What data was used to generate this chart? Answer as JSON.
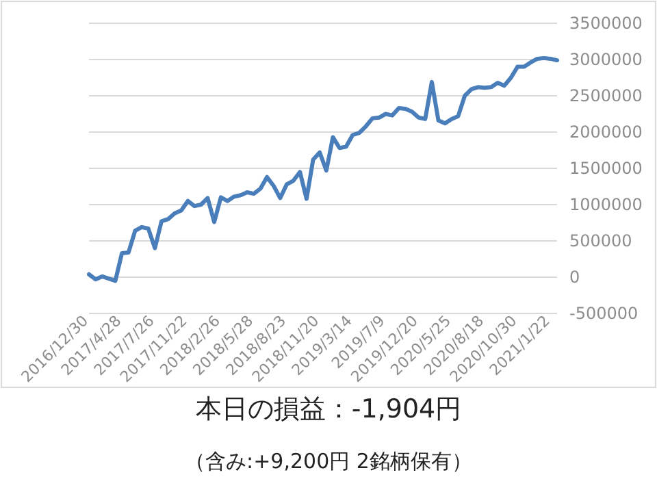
{
  "chart_data": {
    "type": "line",
    "title": "本日の損益：-1,904円",
    "subtitle": "（含み:+9,200円  2銘柄保有）",
    "categories": [
      "2016/12/30",
      null,
      null,
      null,
      null,
      "2017/4/28",
      null,
      null,
      null,
      null,
      "2017/7/26",
      null,
      null,
      null,
      null,
      "2017/11/22",
      null,
      null,
      null,
      null,
      "2018/2/26",
      null,
      null,
      null,
      null,
      "2018/5/28",
      null,
      null,
      null,
      null,
      "2018/8/23",
      null,
      null,
      null,
      null,
      "2018/11/20",
      null,
      null,
      null,
      null,
      "2019/3/14",
      null,
      null,
      null,
      null,
      "2019/7/9",
      null,
      null,
      null,
      null,
      "2019/12/20",
      null,
      null,
      null,
      null,
      "2020/5/25",
      null,
      null,
      null,
      null,
      "2020/8/18",
      null,
      null,
      null,
      null,
      "2020/10/30",
      null,
      null,
      null,
      null,
      "2021/1/22",
      null
    ],
    "series": [
      {
        "color": "#4a7ebb",
        "values": [
          40000,
          -30000,
          10000,
          -20000,
          -50000,
          330000,
          340000,
          640000,
          690000,
          670000,
          400000,
          770000,
          800000,
          880000,
          920000,
          1050000,
          980000,
          1000000,
          1090000,
          760000,
          1100000,
          1050000,
          1110000,
          1130000,
          1170000,
          1150000,
          1220000,
          1380000,
          1260000,
          1090000,
          1280000,
          1330000,
          1450000,
          1080000,
          1620000,
          1720000,
          1470000,
          1930000,
          1780000,
          1800000,
          1960000,
          1990000,
          2080000,
          2190000,
          2200000,
          2250000,
          2230000,
          2330000,
          2320000,
          2280000,
          2200000,
          2180000,
          2690000,
          2160000,
          2120000,
          2180000,
          2220000,
          2500000,
          2590000,
          2620000,
          2610000,
          2620000,
          2680000,
          2640000,
          2750000,
          2900000,
          2900000,
          2960000,
          3010000,
          3020000,
          3010000,
          2990000
        ]
      }
    ],
    "ylim": [
      -500000,
      3500000
    ],
    "yticks": [
      -500000,
      0,
      500000,
      1000000,
      1500000,
      2000000,
      2500000,
      3000000,
      3500000
    ],
    "grid": "y",
    "marker": "none",
    "line_style": "solid"
  }
}
